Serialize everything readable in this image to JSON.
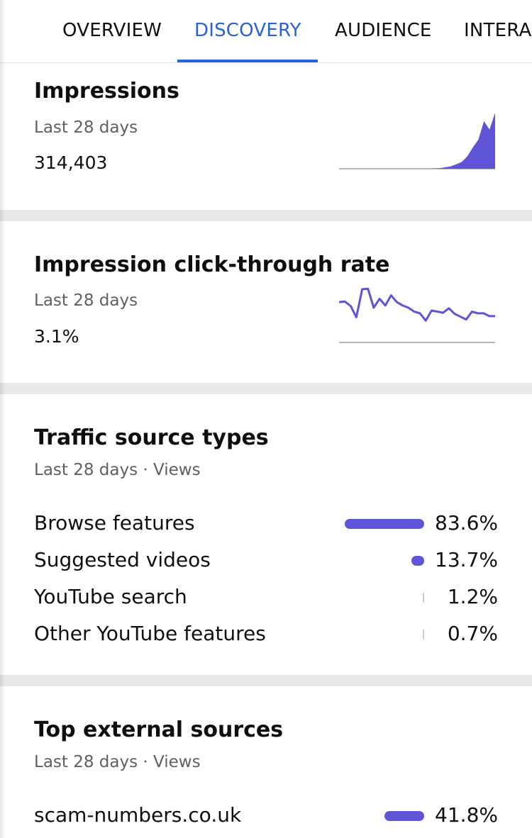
{
  "tabs": [
    {
      "label": "OVERVIEW",
      "active": false
    },
    {
      "label": "DISCOVERY",
      "active": true
    },
    {
      "label": "AUDIENCE",
      "active": false
    },
    {
      "label": "INTERA",
      "active": false
    }
  ],
  "impressions": {
    "title": "Impressions",
    "period": "Last 28 days",
    "value": "314,403",
    "trend": [
      0,
      0,
      0,
      0,
      0,
      0,
      0,
      0,
      0,
      0,
      0,
      0,
      0,
      0,
      0,
      0,
      0,
      0.5,
      1,
      2.5,
      4,
      8,
      12,
      22,
      38,
      52,
      85,
      70,
      100
    ]
  },
  "ctr": {
    "title": "Impression click-through rate",
    "period": "Last 28 days",
    "value": "3.1%",
    "trend": [
      72,
      73,
      65,
      45,
      95,
      96,
      62,
      78,
      66,
      84,
      72,
      66,
      62,
      55,
      52,
      39,
      57,
      55,
      53,
      61,
      51,
      46,
      41,
      55,
      52,
      52,
      47,
      47
    ]
  },
  "traffic_sources": {
    "title": "Traffic source types",
    "subtitle": "Last 28 days · Views",
    "rows": [
      {
        "label": "Browse features",
        "percent": "83.6%",
        "share": 0.836
      },
      {
        "label": "Suggested videos",
        "percent": "13.7%",
        "share": 0.137
      },
      {
        "label": "YouTube search",
        "percent": "1.2%",
        "share": 0.012
      },
      {
        "label": "Other YouTube features",
        "percent": "0.7%",
        "share": 0.007
      }
    ]
  },
  "external_sources": {
    "title": "Top external sources",
    "subtitle": "Last 28 days · Views",
    "rows": [
      {
        "label": "scam-numbers.co.uk",
        "percent": "41.8%",
        "share": 0.418
      }
    ]
  },
  "colors": {
    "accent": "#5e55d6",
    "active_tab": "#2a62d9",
    "divider": "#e9e9e9",
    "secondary_text": "#606060"
  }
}
